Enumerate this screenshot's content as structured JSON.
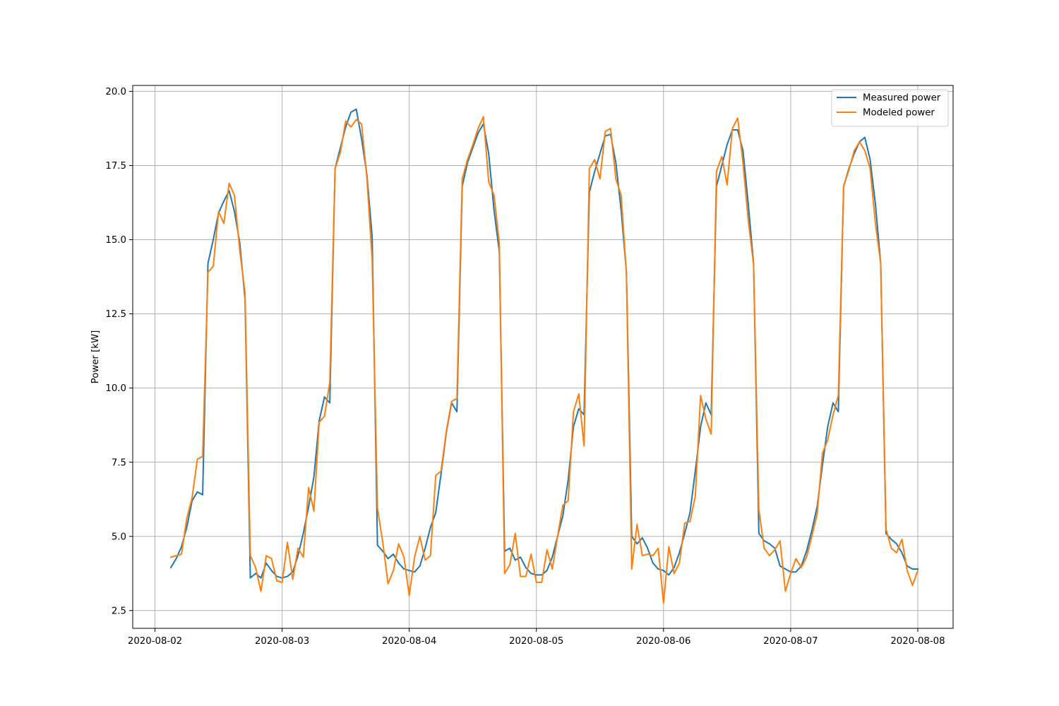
{
  "chart_data": {
    "type": "line",
    "title": "",
    "xlabel": "",
    "ylabel": "Power [kW]",
    "x_ticks": [
      "2020-08-02",
      "2020-08-03",
      "2020-08-04",
      "2020-08-05",
      "2020-08-06",
      "2020-08-07",
      "2020-08-08"
    ],
    "y_ticks": [
      "2.5",
      "5.0",
      "7.5",
      "10.0",
      "12.5",
      "15.0",
      "17.5",
      "20.0"
    ],
    "xlim": [
      "2020-08-01 19:48",
      "2020-08-08 06:40"
    ],
    "ylim": [
      1.9,
      20.2
    ],
    "grid": true,
    "legend_position": "top-right",
    "x_start": "2020-08-02 03:00",
    "x_step_hours": 1,
    "series": [
      {
        "name": "Measured power",
        "color": "#1f77b4",
        "values": [
          3.95,
          4.25,
          4.65,
          5.3,
          6.2,
          6.5,
          6.4,
          14.2,
          15.0,
          15.9,
          16.3,
          16.65,
          15.95,
          14.9,
          13.0,
          3.6,
          3.75,
          3.6,
          4.1,
          3.85,
          3.65,
          3.6,
          3.65,
          3.8,
          4.35,
          5.1,
          6.0,
          7.0,
          8.9,
          9.7,
          9.5,
          17.4,
          18.1,
          18.8,
          19.3,
          19.4,
          18.4,
          17.2,
          15.1,
          4.7,
          4.5,
          4.25,
          4.4,
          4.1,
          3.9,
          3.85,
          3.8,
          4.0,
          4.6,
          5.3,
          5.8,
          7.1,
          8.5,
          9.5,
          9.2,
          16.8,
          17.6,
          18.1,
          18.6,
          18.9,
          17.9,
          16.0,
          14.6,
          4.5,
          4.6,
          4.2,
          4.3,
          3.95,
          3.75,
          3.7,
          3.7,
          3.85,
          4.3,
          5.0,
          5.7,
          6.9,
          8.7,
          9.3,
          9.1,
          16.6,
          17.3,
          17.9,
          18.5,
          18.55,
          17.6,
          16.0,
          13.9,
          5.0,
          4.75,
          4.95,
          4.6,
          4.1,
          3.9,
          3.85,
          3.7,
          3.95,
          4.45,
          5.1,
          5.8,
          7.2,
          8.7,
          9.5,
          9.1,
          16.8,
          17.5,
          18.2,
          18.7,
          18.7,
          18.0,
          16.2,
          14.2,
          5.1,
          4.85,
          4.75,
          4.6,
          4.0,
          3.9,
          3.8,
          3.8,
          4.0,
          4.5,
          5.2,
          6.0,
          7.4,
          8.7,
          9.5,
          9.2,
          16.8,
          17.4,
          17.9,
          18.3,
          18.45,
          17.7,
          16.2,
          14.2,
          5.1,
          4.9,
          4.75,
          4.45,
          4.0,
          3.9,
          3.9
        ]
      },
      {
        "name": "Modeled power",
        "color": "#ff7f0e",
        "values": [
          4.3,
          4.35,
          4.4,
          5.6,
          6.3,
          7.6,
          7.7,
          13.9,
          14.1,
          15.95,
          15.55,
          16.9,
          16.5,
          14.65,
          13.2,
          4.35,
          3.95,
          3.15,
          4.35,
          4.25,
          3.5,
          3.45,
          4.8,
          3.55,
          4.6,
          4.3,
          6.65,
          5.85,
          8.85,
          9.05,
          10.2,
          17.4,
          17.95,
          19.0,
          18.8,
          19.05,
          18.9,
          17.1,
          14.3,
          5.95,
          4.8,
          3.4,
          3.85,
          4.75,
          4.3,
          3.0,
          4.3,
          5.0,
          4.2,
          4.35,
          7.05,
          7.2,
          8.55,
          9.55,
          9.65,
          17.05,
          17.7,
          18.2,
          18.75,
          19.15,
          16.95,
          16.5,
          14.9,
          3.75,
          4.05,
          5.1,
          3.65,
          3.65,
          4.4,
          3.45,
          3.45,
          4.55,
          3.9,
          5.0,
          6.05,
          6.2,
          9.2,
          9.8,
          8.05,
          17.4,
          17.7,
          17.05,
          18.65,
          18.75,
          17.05,
          16.5,
          13.85,
          3.9,
          5.4,
          4.35,
          4.4,
          4.35,
          4.6,
          2.75,
          4.65,
          3.75,
          4.1,
          5.45,
          5.5,
          6.35,
          9.75,
          8.95,
          8.45,
          17.3,
          17.8,
          16.85,
          18.75,
          19.1,
          17.6,
          15.65,
          14.15,
          5.9,
          4.6,
          4.35,
          4.55,
          4.85,
          3.15,
          3.75,
          4.25,
          3.95,
          4.3,
          5.0,
          5.75,
          7.8,
          8.25,
          9.1,
          9.75,
          16.8,
          17.35,
          18.0,
          18.3,
          18.0,
          17.4,
          15.55,
          14.2,
          5.25,
          4.6,
          4.45,
          4.9,
          3.85,
          3.35,
          3.85
        ]
      }
    ]
  }
}
